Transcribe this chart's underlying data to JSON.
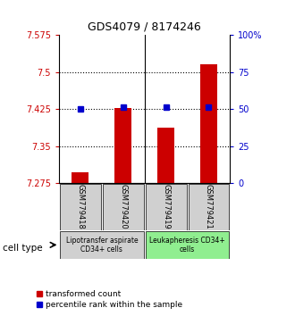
{
  "title": "GDS4079 / 8174246",
  "samples": [
    "GSM779418",
    "GSM779420",
    "GSM779419",
    "GSM779421"
  ],
  "bar_values": [
    7.298,
    7.427,
    7.387,
    7.515
  ],
  "bar_baseline": 7.275,
  "percentile_values": [
    7.426,
    7.429,
    7.428,
    7.428
  ],
  "ylim_left": [
    7.275,
    7.575
  ],
  "ylim_right": [
    0,
    100
  ],
  "yticks_left": [
    7.275,
    7.35,
    7.425,
    7.5,
    7.575
  ],
  "ytick_labels_left": [
    "7.275",
    "7.35",
    "7.425",
    "7.5",
    "7.575"
  ],
  "yticks_right": [
    0,
    25,
    50,
    75,
    100
  ],
  "ytick_labels_right": [
    "0",
    "25",
    "50",
    "75",
    "100%"
  ],
  "hlines": [
    7.35,
    7.425,
    7.5
  ],
  "bar_color": "#CC0000",
  "percentile_color": "#0000CC",
  "bar_width": 0.4,
  "group1_label": "Lipotransfer aspirate\nCD34+ cells",
  "group2_label": "Leukapheresis CD34+\ncells",
  "group1_color": "#d0d0d0",
  "group2_color": "#90ee90",
  "cell_type_label": "cell type",
  "legend_bar_label": "transformed count",
  "legend_pct_label": "percentile rank within the sample",
  "left_tick_color": "#CC0000",
  "right_tick_color": "#0000CC"
}
